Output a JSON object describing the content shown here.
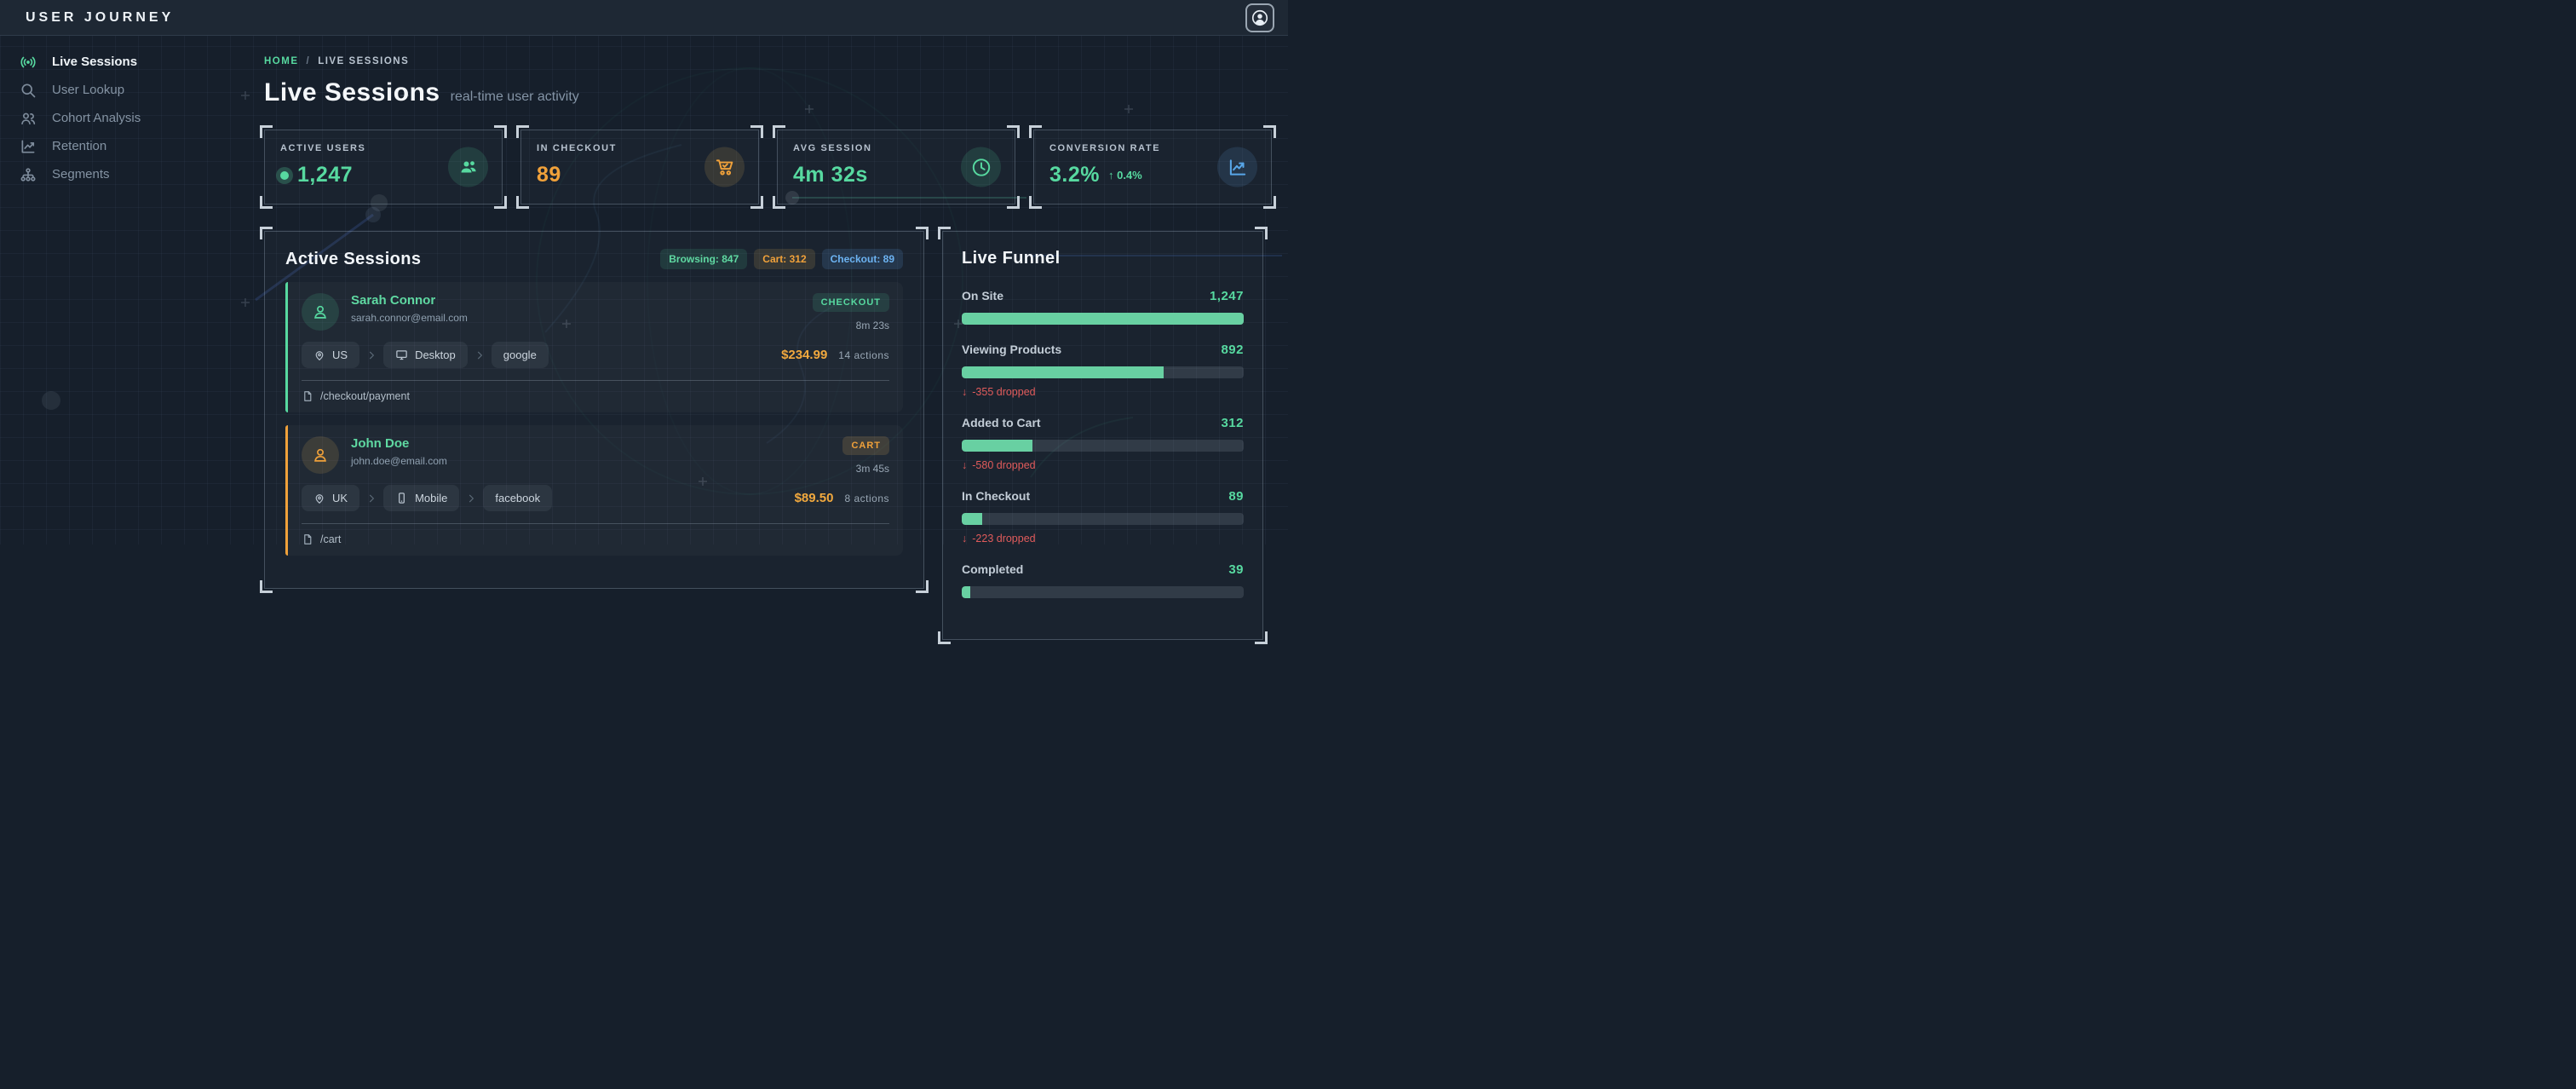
{
  "app": {
    "title": "USER JOURNEY"
  },
  "colors": {
    "accent_green": "#57d9a0",
    "accent_orange": "#f0a13a",
    "accent_blue": "#66b2f0",
    "danger_red": "#e05b5b",
    "background": "#161f2b"
  },
  "sidebar": {
    "items": [
      {
        "label": "Live Sessions",
        "icon": "broadcast-icon",
        "active": true
      },
      {
        "label": "User Lookup",
        "icon": "search-icon",
        "active": false
      },
      {
        "label": "Cohort Analysis",
        "icon": "users-icon",
        "active": false
      },
      {
        "label": "Retention",
        "icon": "retention-chart-icon",
        "active": false
      },
      {
        "label": "Segments",
        "icon": "sitemap-icon",
        "active": false
      }
    ]
  },
  "breadcrumb": {
    "home": "HOME",
    "separator": "/",
    "current": "LIVE SESSIONS"
  },
  "page": {
    "title": "Live Sessions",
    "subtitle": "real-time user activity"
  },
  "stats": [
    {
      "label": "ACTIVE USERS",
      "value": "1,247",
      "icon": "users-icon"
    },
    {
      "label": "IN CHECKOUT",
      "value": "89",
      "icon": "cart-check-icon"
    },
    {
      "label": "AVG SESSION",
      "value": "4m 32s",
      "icon": "clock-icon"
    },
    {
      "label": "CONVERSION RATE",
      "value": "3.2%",
      "delta_arrow": "↑",
      "delta": "0.4%",
      "icon": "line-chart-icon"
    }
  ],
  "active_sessions": {
    "title": "Active Sessions",
    "badges": [
      {
        "label": "Browsing: 847",
        "color": "green"
      },
      {
        "label": "Cart: 312",
        "color": "amber"
      },
      {
        "label": "Checkout: 89",
        "color": "blue"
      }
    ],
    "sessions": [
      {
        "name": "Sarah Connor",
        "email": "sarah.connor@email.com",
        "status": "CHECKOUT",
        "duration": "8m 23s",
        "location": "US",
        "device": "Desktop",
        "source": "google",
        "cart_value": "$234.99",
        "actions": "14 actions",
        "page": "/checkout/payment",
        "accent": "green"
      },
      {
        "name": "John Doe",
        "email": "john.doe@email.com",
        "status": "CART",
        "duration": "3m 45s",
        "location": "UK",
        "device": "Mobile",
        "source": "facebook",
        "cart_value": "$89.50",
        "actions": "8 actions",
        "page": "/cart",
        "accent": "orange"
      }
    ]
  },
  "live_funnel": {
    "title": "Live Funnel",
    "stages": [
      {
        "label": "On Site",
        "value": "1,247",
        "value_num": 1247,
        "pct": 100,
        "dropped": ""
      },
      {
        "label": "Viewing Products",
        "value": "892",
        "value_num": 892,
        "pct": 71.5,
        "dropped": "-355 dropped"
      },
      {
        "label": "Added to Cart",
        "value": "312",
        "value_num": 312,
        "pct": 25,
        "dropped": "-580 dropped"
      },
      {
        "label": "In Checkout",
        "value": "89",
        "value_num": 89,
        "pct": 7.1,
        "dropped": "-223 dropped"
      },
      {
        "label": "Completed",
        "value": "39",
        "value_num": 39,
        "pct": 3.1,
        "dropped": ""
      }
    ]
  }
}
